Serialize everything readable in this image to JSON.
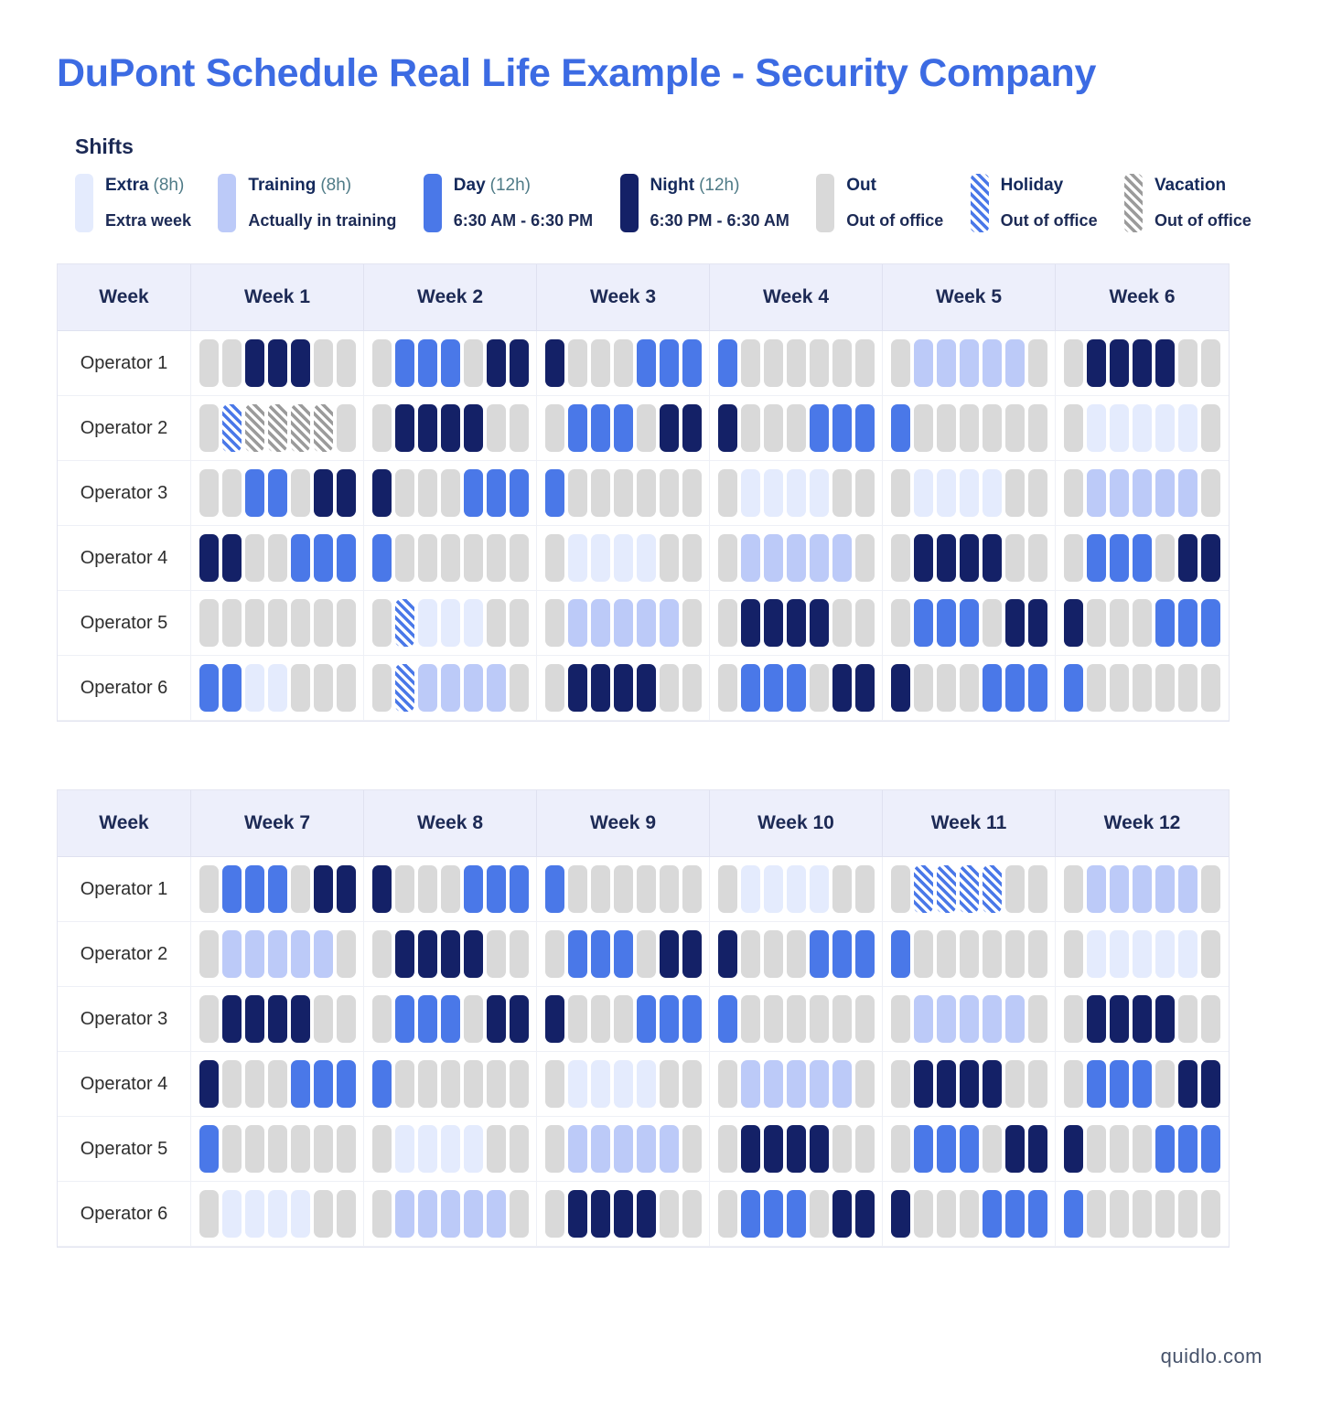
{
  "title": "DuPont Schedule Real Life Example - Security Company",
  "footer": "quidlo.com",
  "legend": {
    "heading": "Shifts",
    "items": [
      {
        "key": "E",
        "name": "extra",
        "label": "Extra",
        "suffix": "(8h)",
        "desc": "Extra week",
        "color": "#e4ebfd",
        "pattern": "solid"
      },
      {
        "key": "T",
        "name": "training",
        "label": "Training",
        "suffix": "(8h)",
        "desc": "Actually in training",
        "color": "#bccaf8",
        "pattern": "solid"
      },
      {
        "key": "D",
        "name": "day",
        "label": "Day",
        "suffix": "(12h)",
        "desc": "6:30 AM - 6:30 PM",
        "color": "#4a78e8",
        "pattern": "solid"
      },
      {
        "key": "N",
        "name": "night",
        "label": "Night",
        "suffix": "(12h)",
        "desc": "6:30 PM - 6:30 AM",
        "color": "#142167",
        "pattern": "solid"
      },
      {
        "key": "O",
        "name": "out",
        "label": "Out",
        "suffix": "",
        "desc": "Out of office",
        "color": "#d9d9d9",
        "pattern": "solid"
      },
      {
        "key": "H",
        "name": "holiday",
        "label": "Holiday",
        "suffix": "",
        "desc": "Out of office",
        "color": "#4a78e8",
        "pattern": "stripes"
      },
      {
        "key": "V",
        "name": "vacation",
        "label": "Vacation",
        "suffix": "",
        "desc": "Out of office",
        "color": "#9b9b9b",
        "pattern": "stripes"
      }
    ]
  },
  "chart_data": {
    "type": "table",
    "title": "DuPont Schedule Real Life Example - Security Company",
    "cell_codes": {
      "E": "Extra (8h)",
      "T": "Training (8h)",
      "D": "Day (12h)",
      "N": "Night (12h)",
      "O": "Out",
      "H": "Holiday",
      "V": "Vacation"
    },
    "tables": [
      {
        "corner": "Week",
        "week_labels": [
          "Week 1",
          "Week 2",
          "Week 3",
          "Week 4",
          "Week 5",
          "Week 6"
        ],
        "rows": [
          {
            "operator": "Operator 1",
            "weeks": [
              "OONNNOO",
              "ODDDONN",
              "NOOODDD",
              "DOOOOOO",
              "OTTTTTO",
              "ONNNNOO"
            ]
          },
          {
            "operator": "Operator 2",
            "weeks": [
              "OHVVVVO",
              "ONNNNOO",
              "ODDDONN",
              "NOOODDD",
              "DOOOOOO",
              "OEEEEEO"
            ]
          },
          {
            "operator": "Operator 3",
            "weeks": [
              "OODDONN",
              "NOOODDD",
              "DOOOOOO",
              "OEEEEOO",
              "OEEEEOO",
              "OTTTTTO"
            ]
          },
          {
            "operator": "Operator 4",
            "weeks": [
              "NNOODDD",
              "DOOOOOO",
              "OEEEEOO",
              "OTTTTTO",
              "ONNNNOO",
              "ODDDONN"
            ]
          },
          {
            "operator": "Operator 5",
            "weeks": [
              "OOOOOOO",
              "OHEEEOO",
              "OTTTTTO",
              "ONNNNOO",
              "ODDDONN",
              "NOOODDD"
            ]
          },
          {
            "operator": "Operator 6",
            "weeks": [
              "DDEEOOO",
              "OHTTTTO",
              "ONNNNOO",
              "ODDDONN",
              "NOOODDD",
              "DOOOOOO"
            ]
          }
        ]
      },
      {
        "corner": "Week",
        "week_labels": [
          "Week 7",
          "Week 8",
          "Week 9",
          "Week 10",
          "Week 11",
          "Week 12"
        ],
        "rows": [
          {
            "operator": "Operator 1",
            "weeks": [
              "ODDDONN",
              "NOOODDD",
              "DOOOOOO",
              "OEEEEOO",
              "OHHHHOO",
              "OTTTTTO"
            ]
          },
          {
            "operator": "Operator 2",
            "weeks": [
              "OTTTTTO",
              "ONNNNOO",
              "ODDDONN",
              "NOOODDD",
              "DOOOOOO",
              "OEEEEEO"
            ]
          },
          {
            "operator": "Operator 3",
            "weeks": [
              "ONNNNOO",
              "ODDDONN",
              "NOOODDD",
              "DOOOOOO",
              "OTTTTTO",
              "ONNNNOO"
            ]
          },
          {
            "operator": "Operator 4",
            "weeks": [
              "NOOODDD",
              "DOOOOOO",
              "OEEEEOO",
              "OTTTTTO",
              "ONNNNOO",
              "ODDDONN"
            ]
          },
          {
            "operator": "Operator 5",
            "weeks": [
              "DOOOOOO",
              "OEEEEOO",
              "OTTTTTO",
              "ONNNNOO",
              "ODDDONN",
              "NOOODDD"
            ]
          },
          {
            "operator": "Operator 6",
            "weeks": [
              "OEEEEOO",
              "OTTTTTO",
              "ONNNNOO",
              "ODDDONN",
              "NOOODDD",
              "DOOOOOO"
            ]
          }
        ]
      }
    ]
  }
}
